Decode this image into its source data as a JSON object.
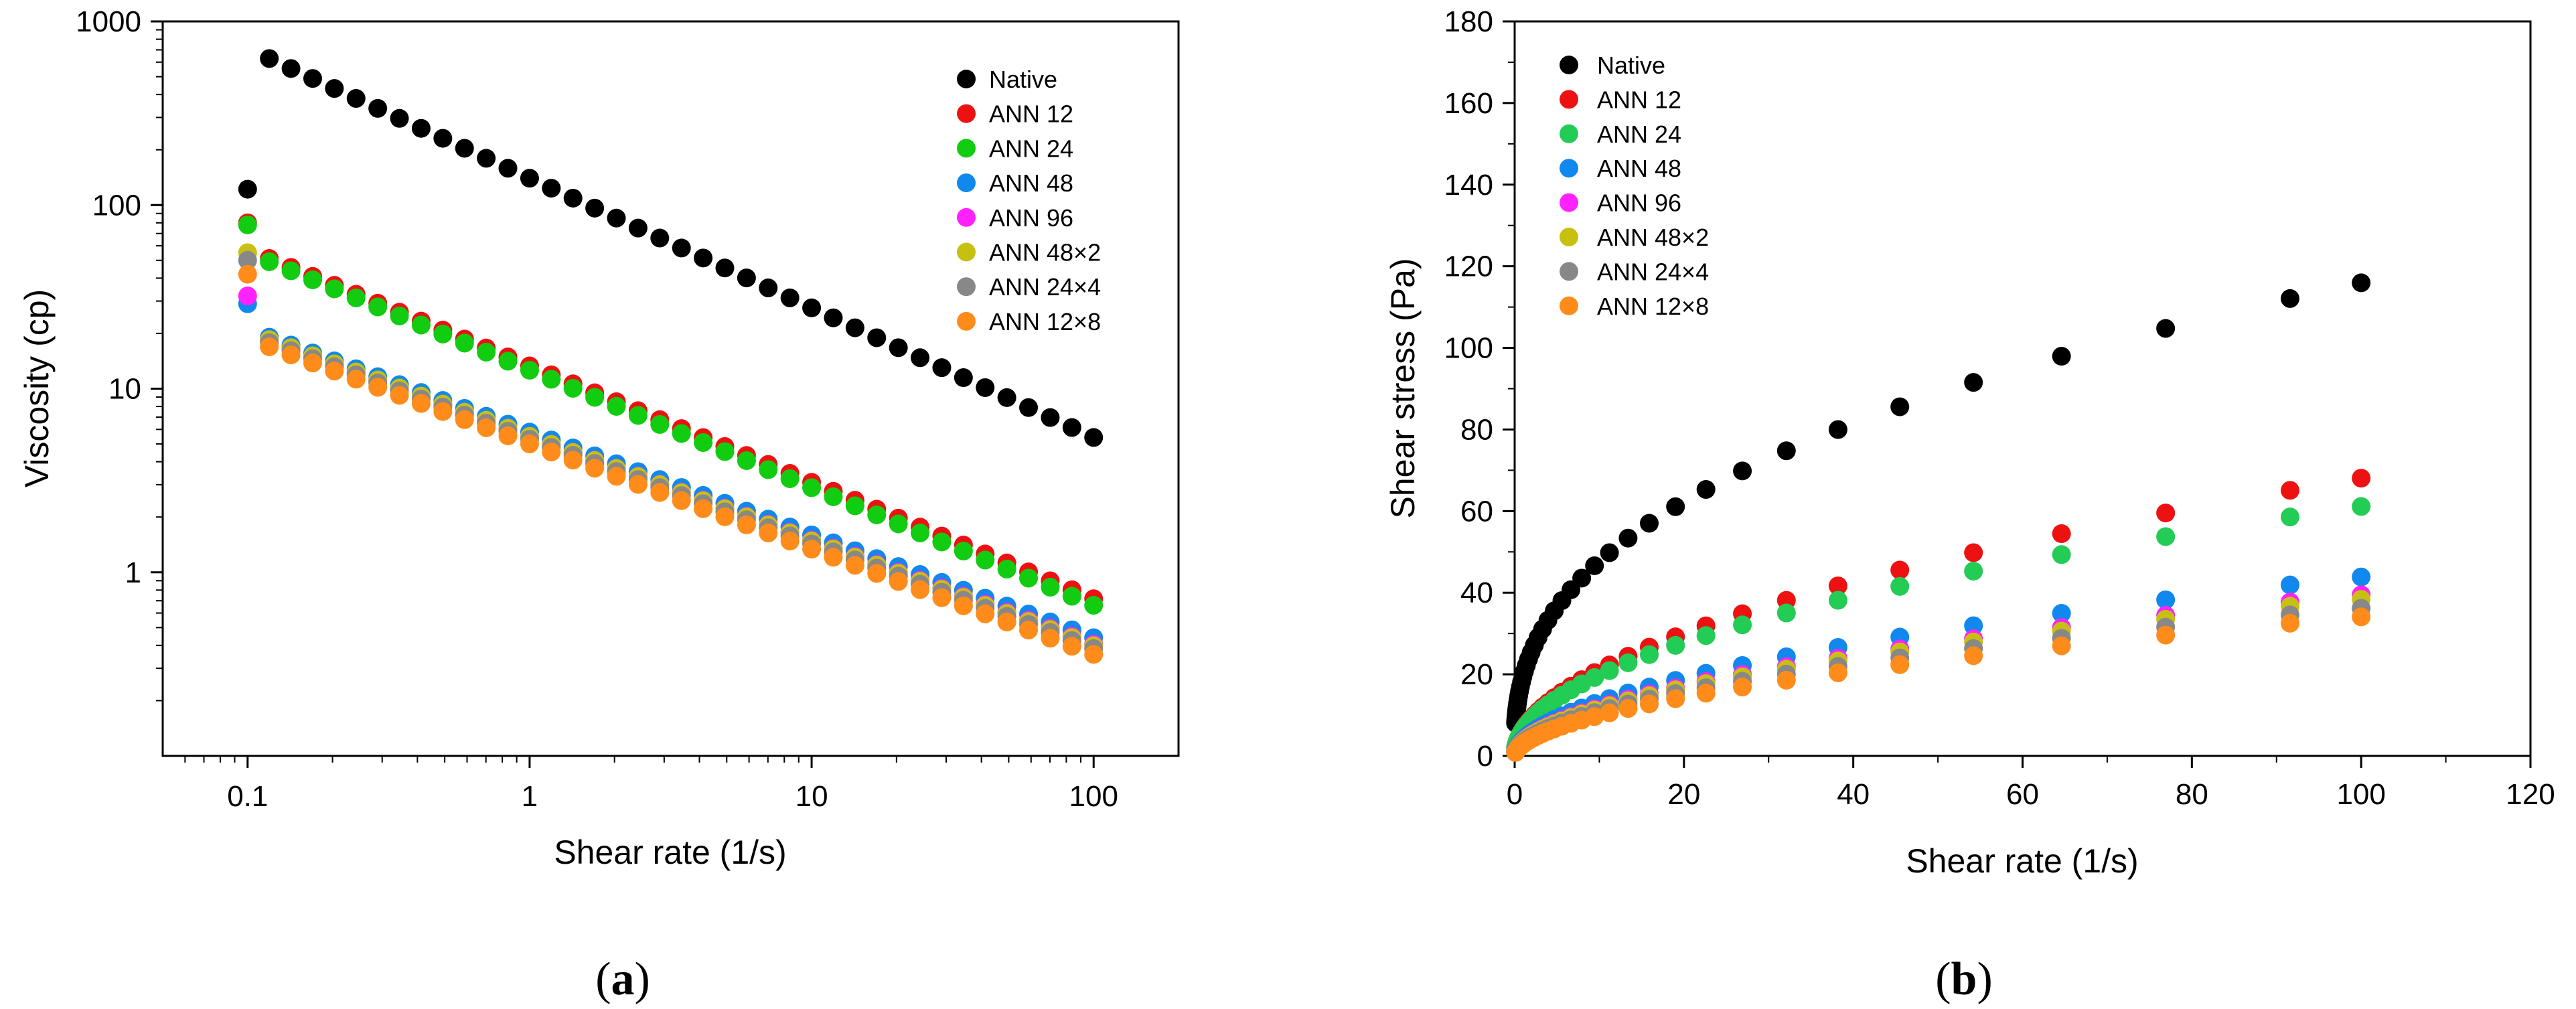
{
  "figure": {
    "panels": [
      {
        "label_open": "(",
        "label_letter": "a",
        "label_close": ")"
      },
      {
        "label_open": "(",
        "label_letter": "b",
        "label_close": ")"
      }
    ]
  },
  "chart_data": [
    {
      "type": "scatter",
      "panel": "a",
      "xlabel": "Shear rate (1/s)",
      "ylabel": "Viscosity (cp)",
      "xscale": "log",
      "yscale": "log",
      "xlim": [
        0.05,
        200
      ],
      "ylim": [
        0.1,
        1000
      ],
      "xticks": [
        {
          "value": 0.1,
          "label": "0.1"
        },
        {
          "value": 1,
          "label": "1"
        },
        {
          "value": 10,
          "label": "10"
        },
        {
          "value": 100,
          "label": "100"
        }
      ],
      "yticks": [
        {
          "value": 1,
          "label": "1"
        },
        {
          "value": 10,
          "label": "10"
        },
        {
          "value": 100,
          "label": "100"
        },
        {
          "value": 1000,
          "label": "1000"
        }
      ],
      "grid": false,
      "legend": "top-right",
      "x_range": [
        0.1,
        100
      ],
      "n_points": 40,
      "series": [
        {
          "name": "Native",
          "color": "#000000",
          "first": 122,
          "v0": 140,
          "exponent": -0.706
        },
        {
          "name": "ANN 12",
          "color": "#ee1111",
          "first": 80,
          "v0": 13.3,
          "exponent": -0.634
        },
        {
          "name": "ANN 24",
          "color": "#11cc11",
          "first": 78,
          "v0": 12.6,
          "exponent": -0.64
        },
        {
          "name": "ANN 48",
          "color": "#1188ee",
          "first": 29,
          "v0": 5.8,
          "exponent": -0.56
        },
        {
          "name": "ANN 96",
          "color": "#ff22ff",
          "first": 32,
          "v0": 5.5,
          "exponent": -0.566
        },
        {
          "name": "ANN 48×2",
          "color": "#c8c010",
          "first": 55,
          "v0": 5.5,
          "exponent": -0.57
        },
        {
          "name": "ANN 24×4",
          "color": "#888888",
          "first": 50,
          "v0": 5.3,
          "exponent": -0.57
        },
        {
          "name": "ANN 12×8",
          "color": "#ff8c1a",
          "first": 42,
          "v0": 5.0,
          "exponent": -0.573
        }
      ]
    },
    {
      "type": "scatter",
      "panel": "b",
      "xlabel": "Shear rate (1/s)",
      "ylabel": "Shear stress (Pa)",
      "xlim": [
        0,
        120
      ],
      "ylim": [
        0,
        180
      ],
      "xticks": [
        0,
        20,
        40,
        60,
        80,
        100,
        120
      ],
      "yticks": [
        0,
        20,
        40,
        60,
        80,
        100,
        120,
        140,
        160,
        180
      ],
      "grid": false,
      "legend": "top-left",
      "x": [
        0.1,
        0.119,
        0.142,
        0.169,
        0.201,
        0.24,
        0.285,
        0.34,
        0.405,
        0.483,
        0.575,
        0.685,
        0.816,
        0.972,
        1.16,
        1.38,
        1.64,
        1.95,
        2.33,
        2.77,
        3.3,
        3.93,
        4.68,
        5.58,
        6.65,
        7.92,
        9.43,
        11.2,
        13.4,
        15.9,
        19,
        22.6,
        26.9,
        32.1,
        38.2,
        45.5,
        54.2,
        64.6,
        76.9,
        91.6
      ],
      "series": [
        {
          "name": "Native",
          "color": "#000000",
          "k": 19.6,
          "n": 0.386
        },
        {
          "name": "ANN 12",
          "color": "#ee1111",
          "k": 6.5,
          "n": 0.51
        },
        {
          "name": "ANN 24",
          "color": "#22cc55",
          "k": 6.4,
          "n": 0.49
        },
        {
          "name": "ANN 48",
          "color": "#1188ee",
          "k": 4.0,
          "n": 0.52
        },
        {
          "name": "ANN 96",
          "color": "#ff22ff",
          "k": 3.6,
          "n": 0.52
        },
        {
          "name": "ANN 48×2",
          "color": "#c8c010",
          "k": 3.5,
          "n": 0.52
        },
        {
          "name": "ANN 24×4",
          "color": "#888888",
          "k": 3.3,
          "n": 0.52
        },
        {
          "name": "ANN 12×8",
          "color": "#ff8c1a",
          "k": 2.9,
          "n": 0.535
        }
      ]
    }
  ]
}
